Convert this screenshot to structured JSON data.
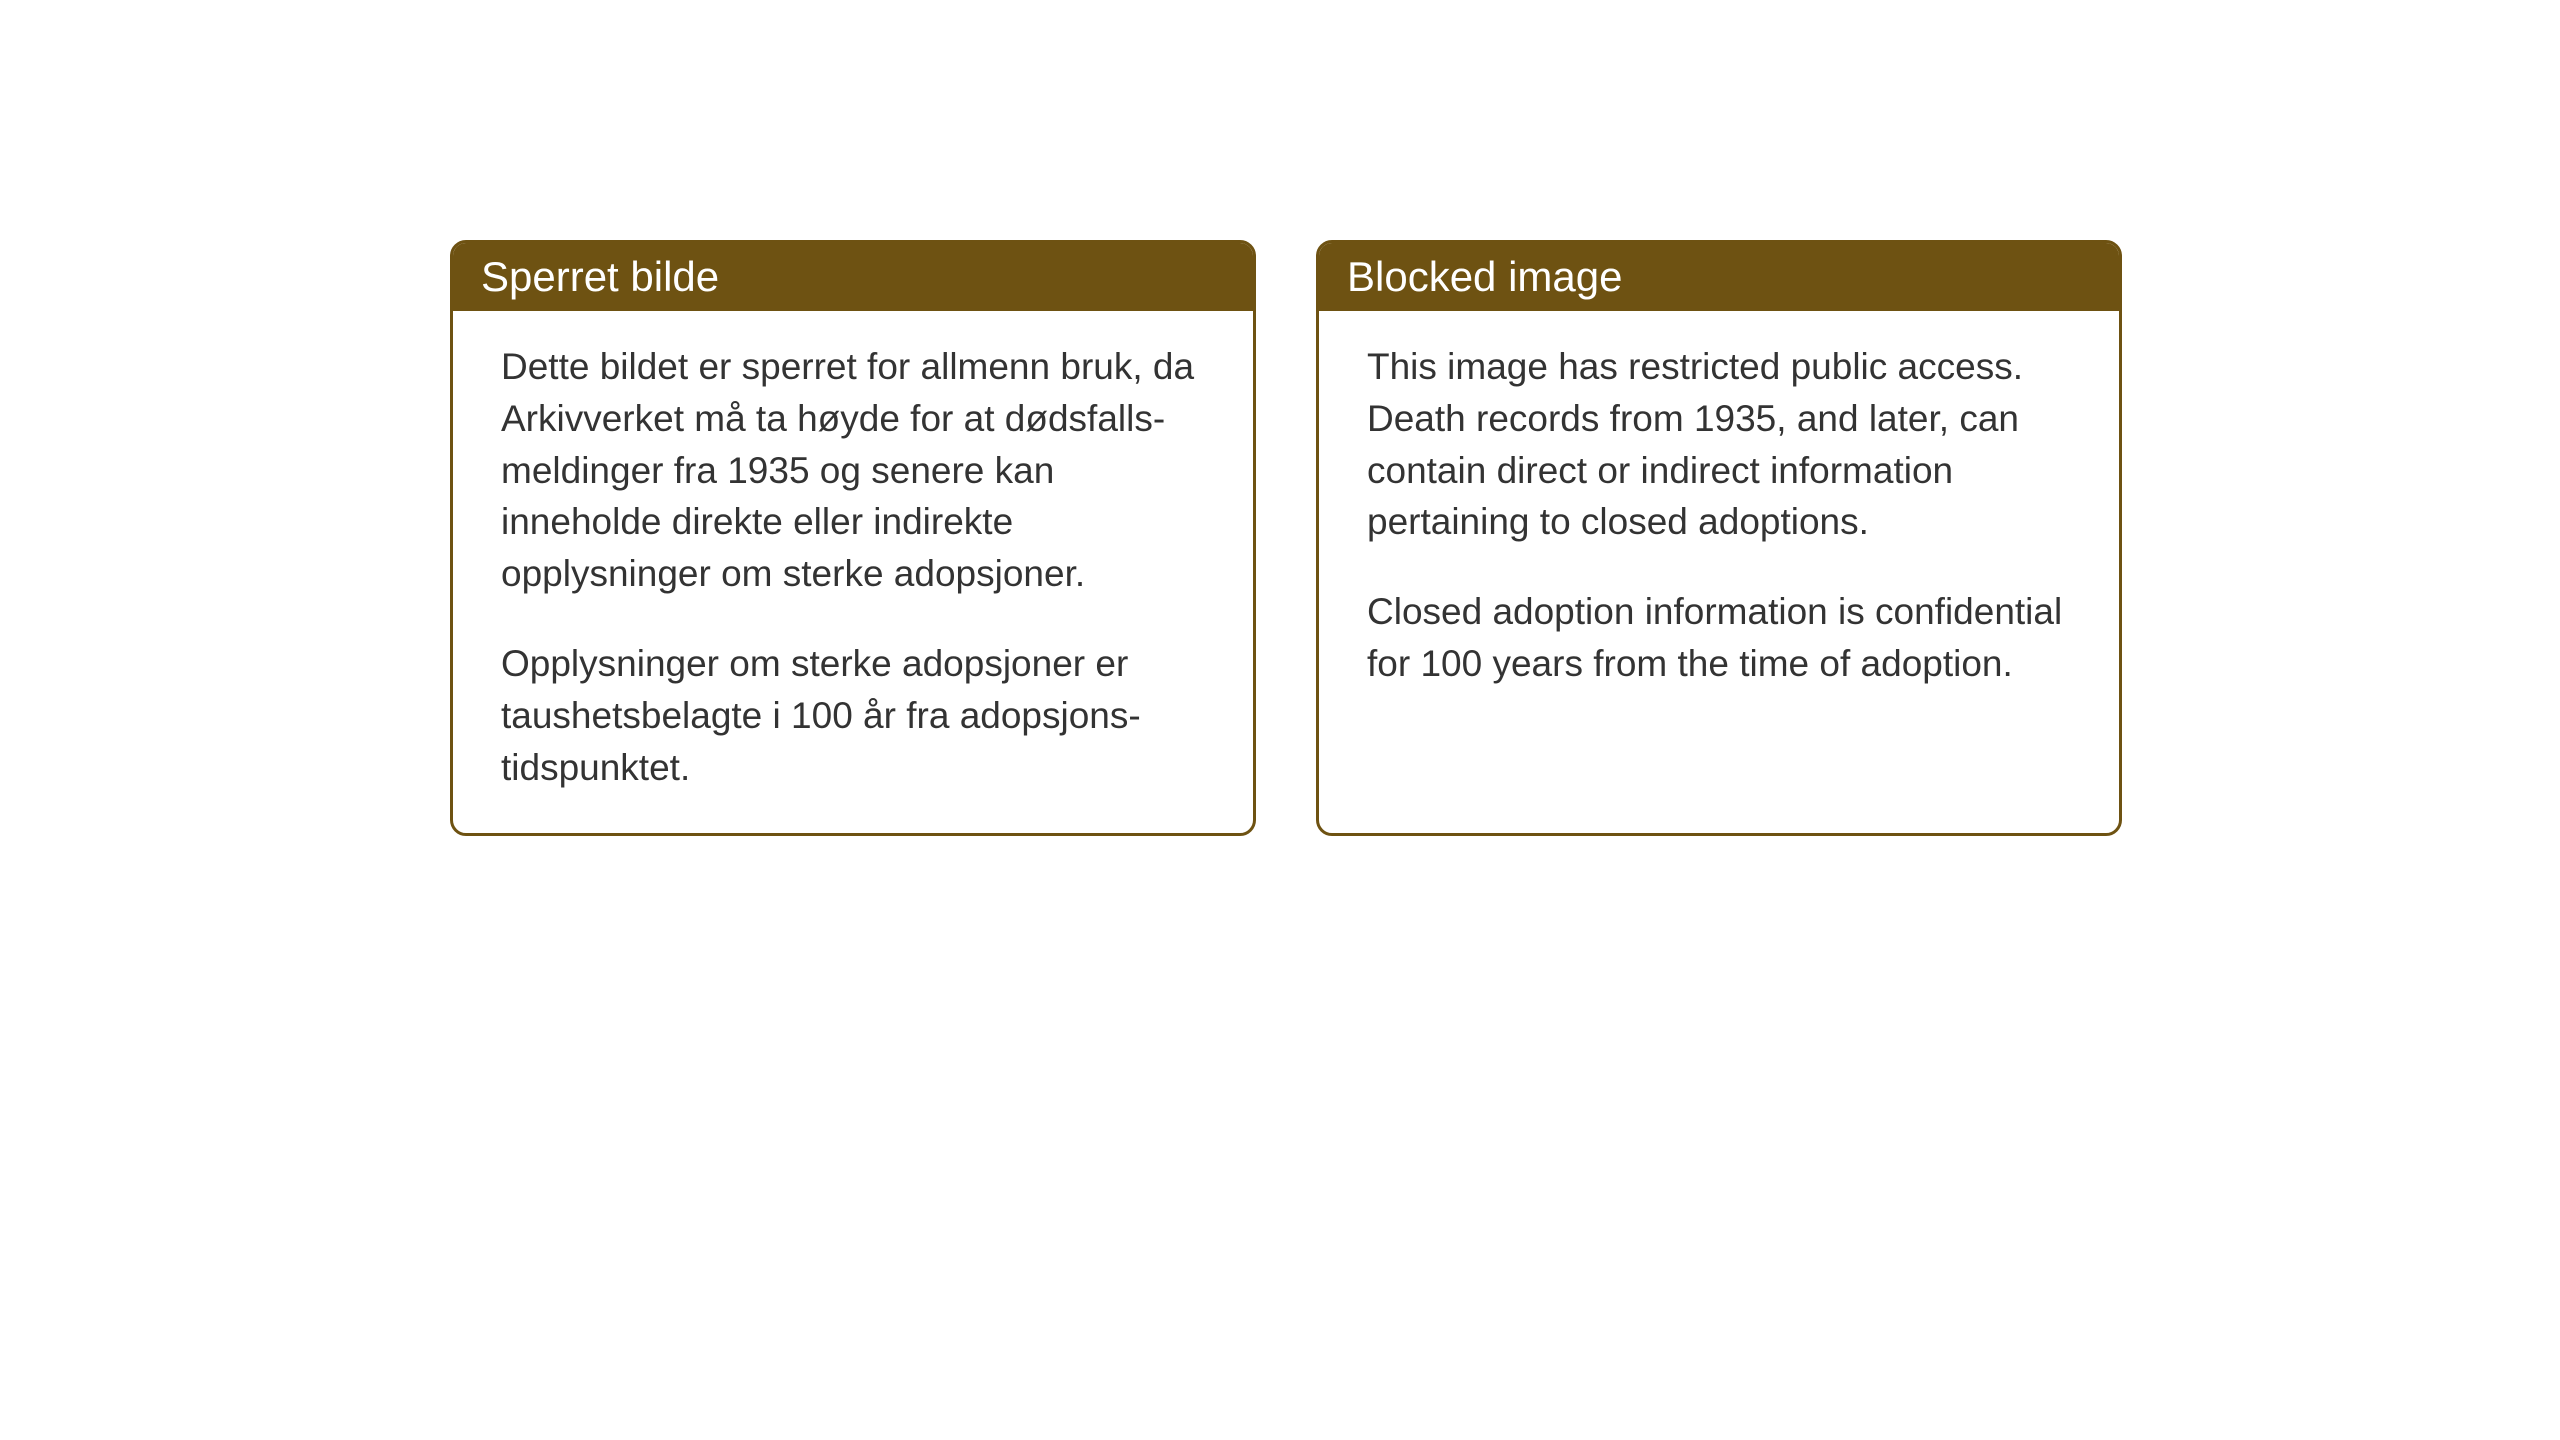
{
  "layout": {
    "background_color": "#ffffff",
    "box_border_color": "#6e5212",
    "header_background_color": "#6e5212",
    "header_text_color": "#ffffff",
    "body_text_color": "#333333",
    "header_fontsize": 42,
    "body_fontsize": 37,
    "border_radius": 16,
    "border_width": 3
  },
  "notices": [
    {
      "title": "Sperret bilde",
      "paragraphs": [
        "Dette bildet er sperret for allmenn bruk, da Arkivverket må ta høyde for at dødsfalls-meldinger fra 1935 og senere kan inneholde direkte eller indirekte opplysninger om sterke adopsjoner.",
        "Opplysninger om sterke adopsjoner er taushetsbelagte i 100 år fra adopsjons-tidspunktet."
      ]
    },
    {
      "title": "Blocked image",
      "paragraphs": [
        "This image has restricted public access. Death records from 1935, and later, can contain direct or indirect information pertaining to closed adoptions.",
        "Closed adoption information is confidential for 100 years from the time of adoption."
      ]
    }
  ]
}
